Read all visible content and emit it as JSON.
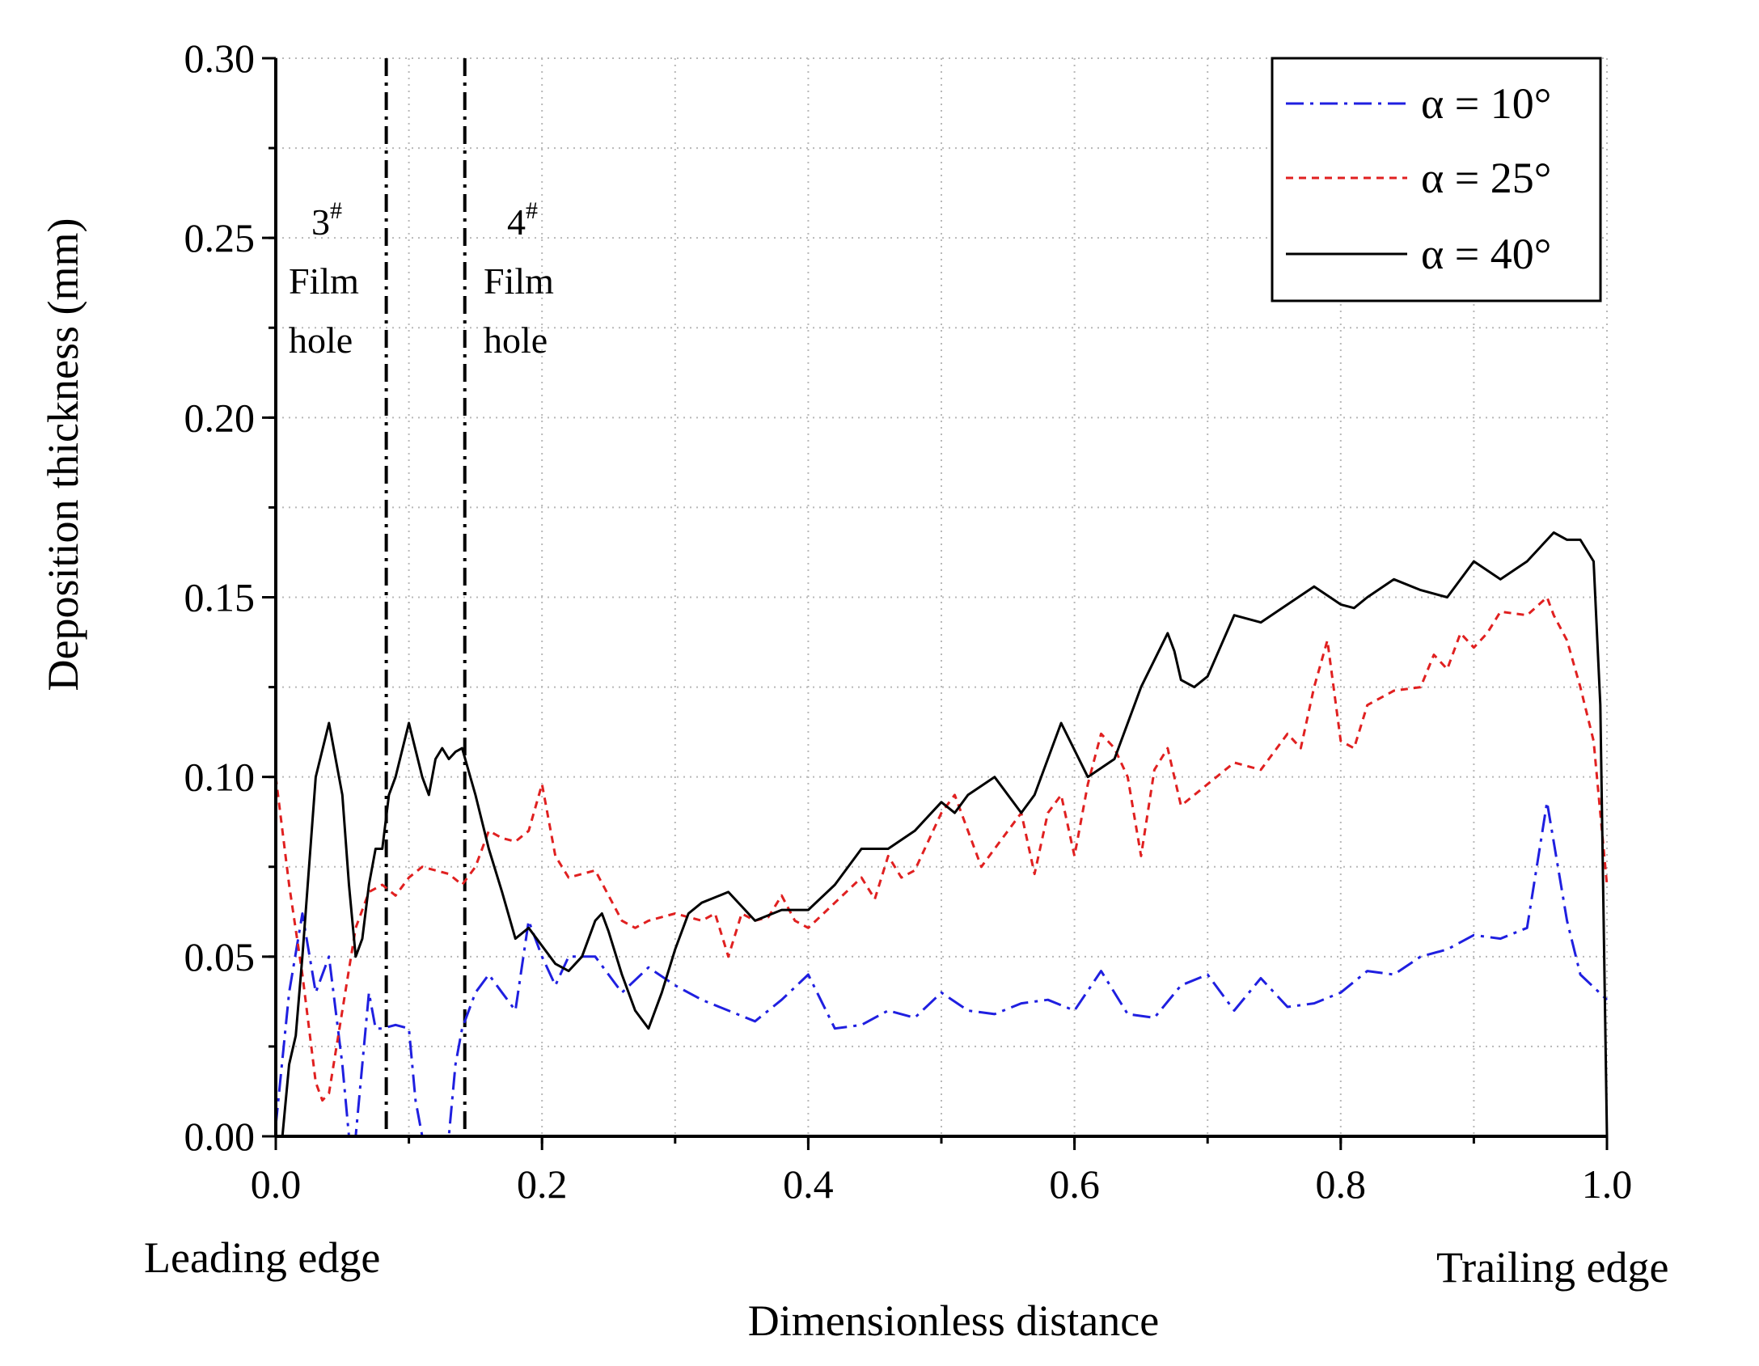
{
  "chart_data": {
    "type": "line",
    "title": "",
    "xlabel": "Dimensionless distance",
    "ylabel": "Deposition thickness (mm)",
    "xlim": [
      0,
      1
    ],
    "ylim": [
      0,
      0.3
    ],
    "x_ticks": [
      "0.0",
      "0.2",
      "0.4",
      "0.6",
      "0.8",
      "1.0"
    ],
    "y_ticks": [
      "0.00",
      "0.05",
      "0.10",
      "0.15",
      "0.20",
      "0.25",
      "0.30"
    ],
    "x_tick_values": [
      0,
      0.2,
      0.4,
      0.6,
      0.8,
      1.0
    ],
    "y_tick_values": [
      0,
      0.05,
      0.1,
      0.15,
      0.2,
      0.25,
      0.3
    ],
    "grid": true,
    "legend_position": "top-right",
    "edge_labels": {
      "leading": "Leading edge",
      "trailing": "Trailing edge"
    },
    "film_holes": [
      {
        "number": "3",
        "sup": "#",
        "line1": "Film",
        "line2": "hole",
        "x": 0.083
      },
      {
        "number": "4",
        "sup": "#",
        "line1": "Film",
        "line2": "hole",
        "x": 0.142
      }
    ],
    "series": [
      {
        "name": "α = 10°",
        "color": "#1f1fe0",
        "style": "dashdot",
        "x": [
          0.0,
          0.01,
          0.02,
          0.03,
          0.04,
          0.05,
          0.055,
          0.06,
          0.065,
          0.07,
          0.075,
          0.08,
          0.09,
          0.1,
          0.105,
          0.11,
          0.13,
          0.135,
          0.14,
          0.15,
          0.16,
          0.17,
          0.18,
          0.19,
          0.2,
          0.21,
          0.22,
          0.24,
          0.26,
          0.28,
          0.3,
          0.32,
          0.34,
          0.36,
          0.38,
          0.4,
          0.42,
          0.44,
          0.46,
          0.48,
          0.5,
          0.52,
          0.54,
          0.56,
          0.58,
          0.6,
          0.62,
          0.64,
          0.66,
          0.68,
          0.7,
          0.72,
          0.74,
          0.76,
          0.78,
          0.8,
          0.82,
          0.84,
          0.86,
          0.88,
          0.9,
          0.92,
          0.94,
          0.955,
          0.97,
          0.98,
          1.0
        ],
        "y": [
          0.003,
          0.04,
          0.062,
          0.04,
          0.05,
          0.02,
          0.0,
          0.0,
          0.02,
          0.04,
          0.03,
          0.03,
          0.031,
          0.03,
          0.01,
          0.0,
          0.0,
          0.02,
          0.03,
          0.04,
          0.045,
          0.04,
          0.035,
          0.06,
          0.05,
          0.042,
          0.05,
          0.05,
          0.04,
          0.047,
          0.042,
          0.038,
          0.035,
          0.032,
          0.038,
          0.045,
          0.03,
          0.031,
          0.035,
          0.033,
          0.04,
          0.035,
          0.034,
          0.037,
          0.038,
          0.035,
          0.046,
          0.034,
          0.033,
          0.042,
          0.045,
          0.035,
          0.044,
          0.036,
          0.037,
          0.04,
          0.046,
          0.045,
          0.05,
          0.052,
          0.056,
          0.055,
          0.058,
          0.093,
          0.06,
          0.045,
          0.038
        ]
      },
      {
        "name": "α = 25°",
        "color": "#e02020",
        "style": "dashed",
        "x": [
          0.0,
          0.01,
          0.02,
          0.03,
          0.035,
          0.04,
          0.05,
          0.06,
          0.07,
          0.08,
          0.09,
          0.1,
          0.11,
          0.12,
          0.13,
          0.14,
          0.15,
          0.16,
          0.17,
          0.18,
          0.19,
          0.2,
          0.21,
          0.22,
          0.24,
          0.26,
          0.27,
          0.28,
          0.3,
          0.32,
          0.33,
          0.34,
          0.35,
          0.36,
          0.37,
          0.38,
          0.39,
          0.4,
          0.42,
          0.44,
          0.45,
          0.46,
          0.47,
          0.48,
          0.5,
          0.51,
          0.52,
          0.53,
          0.54,
          0.55,
          0.56,
          0.57,
          0.58,
          0.59,
          0.6,
          0.61,
          0.62,
          0.63,
          0.64,
          0.65,
          0.66,
          0.67,
          0.68,
          0.7,
          0.72,
          0.74,
          0.76,
          0.77,
          0.78,
          0.79,
          0.8,
          0.81,
          0.82,
          0.84,
          0.86,
          0.87,
          0.88,
          0.89,
          0.9,
          0.91,
          0.92,
          0.94,
          0.955,
          0.96,
          0.97,
          0.98,
          0.99,
          1.0
        ],
        "y": [
          0.1,
          0.07,
          0.045,
          0.015,
          0.01,
          0.012,
          0.035,
          0.058,
          0.068,
          0.07,
          0.067,
          0.072,
          0.075,
          0.074,
          0.073,
          0.07,
          0.075,
          0.085,
          0.083,
          0.082,
          0.085,
          0.098,
          0.078,
          0.072,
          0.074,
          0.06,
          0.058,
          0.06,
          0.062,
          0.06,
          0.062,
          0.05,
          0.062,
          0.06,
          0.061,
          0.067,
          0.06,
          0.058,
          0.065,
          0.072,
          0.066,
          0.078,
          0.072,
          0.074,
          0.09,
          0.095,
          0.085,
          0.075,
          0.08,
          0.085,
          0.09,
          0.073,
          0.09,
          0.095,
          0.078,
          0.098,
          0.112,
          0.108,
          0.1,
          0.078,
          0.102,
          0.108,
          0.092,
          0.098,
          0.104,
          0.102,
          0.112,
          0.108,
          0.125,
          0.138,
          0.11,
          0.108,
          0.12,
          0.124,
          0.125,
          0.134,
          0.13,
          0.14,
          0.136,
          0.14,
          0.146,
          0.145,
          0.15,
          0.145,
          0.138,
          0.125,
          0.11,
          0.07
        ]
      },
      {
        "name": "α = 40°",
        "color": "#000000",
        "style": "solid",
        "x": [
          0.005,
          0.01,
          0.015,
          0.02,
          0.03,
          0.04,
          0.05,
          0.055,
          0.06,
          0.065,
          0.07,
          0.075,
          0.08,
          0.085,
          0.09,
          0.1,
          0.11,
          0.115,
          0.12,
          0.125,
          0.13,
          0.135,
          0.14,
          0.15,
          0.16,
          0.17,
          0.18,
          0.19,
          0.2,
          0.21,
          0.22,
          0.23,
          0.24,
          0.245,
          0.25,
          0.26,
          0.27,
          0.28,
          0.29,
          0.3,
          0.31,
          0.32,
          0.34,
          0.36,
          0.38,
          0.4,
          0.42,
          0.44,
          0.46,
          0.48,
          0.5,
          0.51,
          0.52,
          0.54,
          0.56,
          0.57,
          0.59,
          0.61,
          0.63,
          0.65,
          0.67,
          0.675,
          0.68,
          0.69,
          0.7,
          0.72,
          0.74,
          0.76,
          0.78,
          0.8,
          0.81,
          0.82,
          0.84,
          0.86,
          0.88,
          0.9,
          0.92,
          0.94,
          0.96,
          0.97,
          0.98,
          0.99,
          0.995,
          1.0
        ],
        "y": [
          0.0,
          0.02,
          0.028,
          0.05,
          0.1,
          0.115,
          0.095,
          0.07,
          0.05,
          0.055,
          0.07,
          0.08,
          0.08,
          0.095,
          0.1,
          0.115,
          0.1,
          0.095,
          0.105,
          0.108,
          0.105,
          0.107,
          0.108,
          0.095,
          0.08,
          0.068,
          0.055,
          0.058,
          0.053,
          0.048,
          0.046,
          0.05,
          0.06,
          0.062,
          0.057,
          0.045,
          0.035,
          0.03,
          0.04,
          0.052,
          0.062,
          0.065,
          0.068,
          0.06,
          0.063,
          0.063,
          0.07,
          0.08,
          0.08,
          0.085,
          0.093,
          0.09,
          0.095,
          0.1,
          0.09,
          0.095,
          0.115,
          0.1,
          0.105,
          0.125,
          0.14,
          0.135,
          0.127,
          0.125,
          0.128,
          0.145,
          0.143,
          0.148,
          0.153,
          0.148,
          0.147,
          0.15,
          0.155,
          0.152,
          0.15,
          0.16,
          0.155,
          0.16,
          0.168,
          0.166,
          0.166,
          0.16,
          0.12,
          0.0
        ]
      }
    ]
  }
}
